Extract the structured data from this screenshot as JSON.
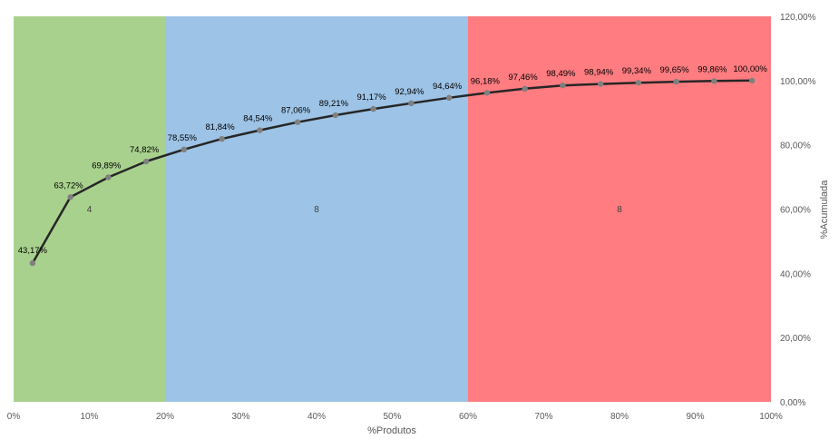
{
  "chart_data": {
    "type": "line",
    "title": "",
    "xlabel": "%Produtos",
    "ylabel": "%Acumulada",
    "xlim": [
      0,
      100
    ],
    "ylim": [
      0,
      120
    ],
    "x_ticks": [
      "0%",
      "10%",
      "20%",
      "30%",
      "40%",
      "50%",
      "60%",
      "70%",
      "80%",
      "90%",
      "100%"
    ],
    "y_ticks": [
      "0,00%",
      "20,00%",
      "40,00%",
      "60,00%",
      "80,00%",
      "100,00%",
      "120,00%"
    ],
    "y_axis_position": "right",
    "grid": false,
    "zones": [
      {
        "from": 0,
        "to": 20,
        "color": "#a9d18e",
        "label": "4"
      },
      {
        "from": 20,
        "to": 60,
        "color": "#9dc3e6",
        "label": "8"
      },
      {
        "from": 60,
        "to": 100,
        "color": "#ff7c80",
        "label": "8"
      }
    ],
    "series": [
      {
        "color": "#262626",
        "marker_color": "#808080",
        "x": [
          2.5,
          7.5,
          12.5,
          17.5,
          22.5,
          27.5,
          32.5,
          37.5,
          42.5,
          47.5,
          52.5,
          57.5,
          62.5,
          67.5,
          72.5,
          77.5,
          82.5,
          87.5,
          92.5,
          97.5
        ],
        "values": [
          43.17,
          63.72,
          69.89,
          74.82,
          78.55,
          81.84,
          84.54,
          87.06,
          89.21,
          91.17,
          92.94,
          94.64,
          96.18,
          97.46,
          98.49,
          98.94,
          99.34,
          99.65,
          99.86,
          100.0
        ],
        "labels": [
          "43,17%",
          "63,72%",
          "69,89%",
          "74,82%",
          "78,55%",
          "81,84%",
          "84,54%",
          "87,06%",
          "89,21%",
          "91,17%",
          "92,94%",
          "94,64%",
          "96,18%",
          "97,46%",
          "98,49%",
          "98,94%",
          "99,34%",
          "99,65%",
          "99,86%",
          "100,00%"
        ]
      }
    ]
  }
}
